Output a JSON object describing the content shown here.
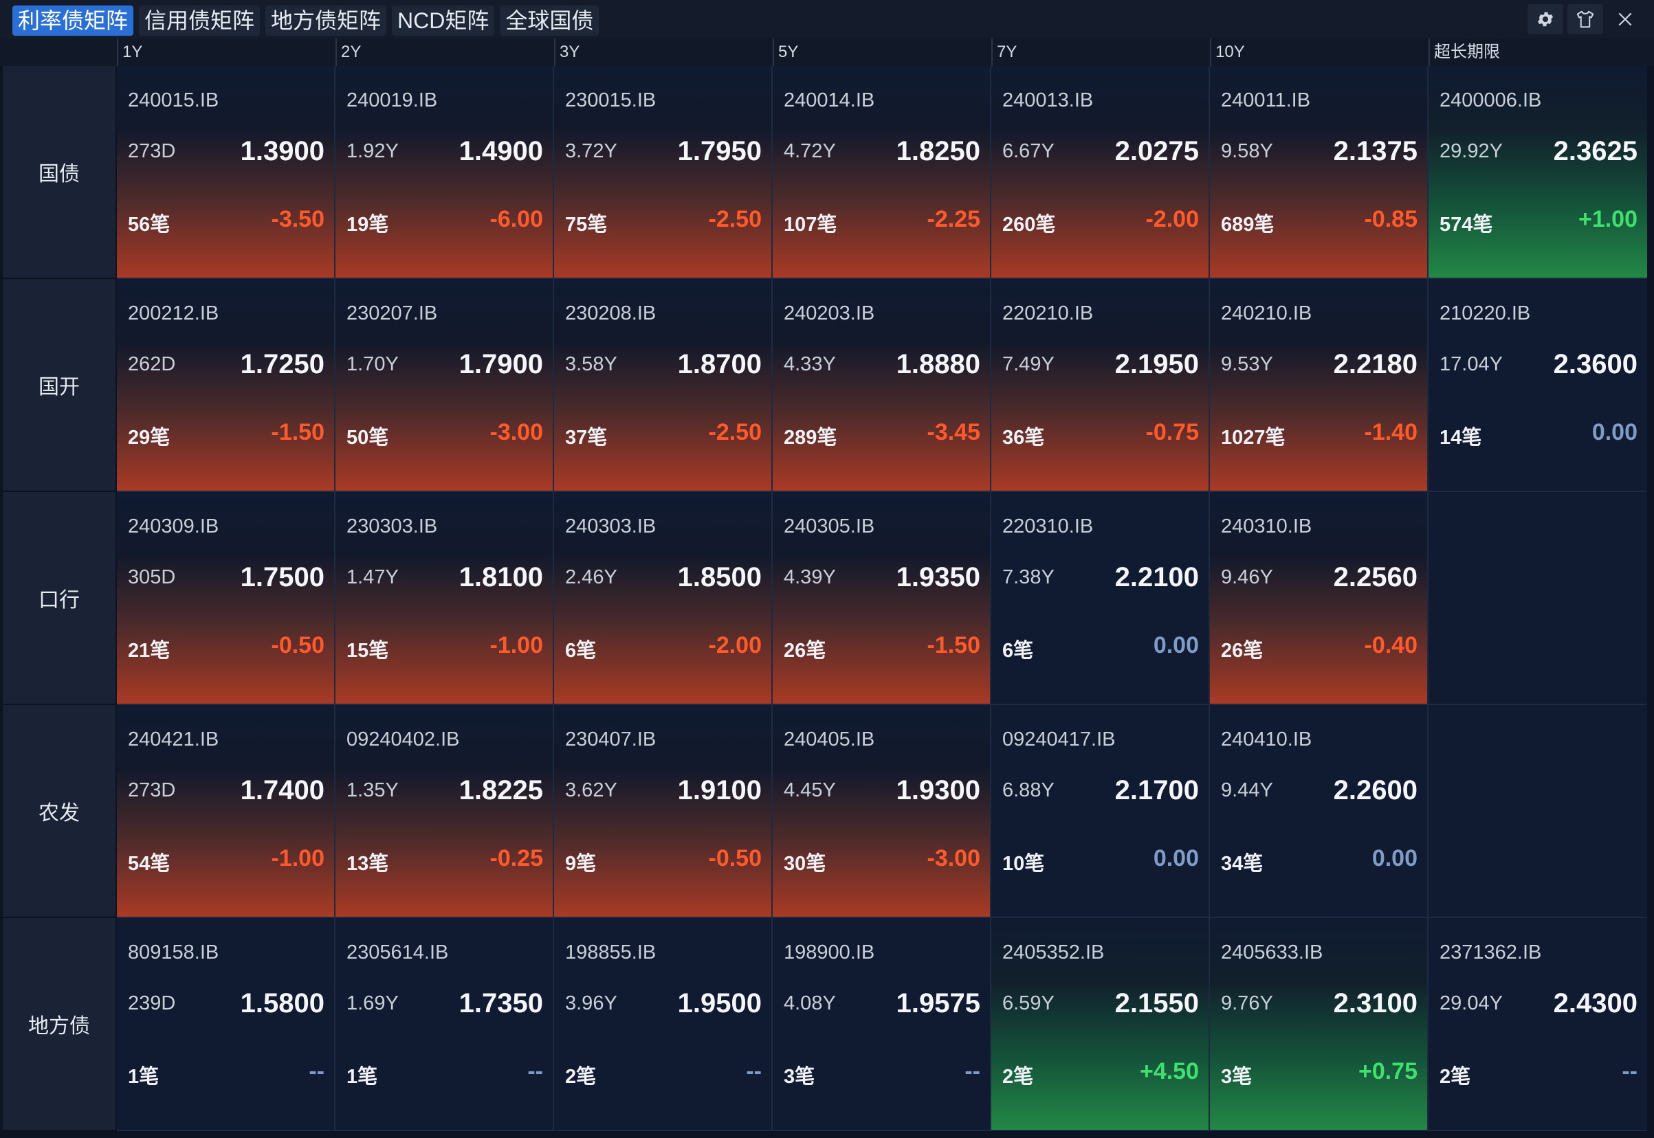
{
  "tabs": [
    "利率债矩阵",
    "信用债矩阵",
    "地方债矩阵",
    "NCD矩阵",
    "全球国债"
  ],
  "active_tab": 0,
  "window_icons": [
    "gear-icon",
    "shirt-icon",
    "close-icon"
  ],
  "close_glyph": "X",
  "columns": [
    "1Y",
    "2Y",
    "3Y",
    "5Y",
    "7Y",
    "10Y",
    "超长期限"
  ],
  "colors": {
    "down": "#ff5a2c",
    "up": "#3fe06e",
    "flat": "#7f9cc6",
    "active_tab": "#2a6fd6"
  },
  "rows": [
    {
      "label": "国债",
      "cells": [
        {
          "code": "240015.IB",
          "term": "273D",
          "yield": "1.3900",
          "count": "56笔",
          "change": "-3.50",
          "dir": "down"
        },
        {
          "code": "240019.IB",
          "term": "1.92Y",
          "yield": "1.4900",
          "count": "19笔",
          "change": "-6.00",
          "dir": "down"
        },
        {
          "code": "230015.IB",
          "term": "3.72Y",
          "yield": "1.7950",
          "count": "75笔",
          "change": "-2.50",
          "dir": "down"
        },
        {
          "code": "240014.IB",
          "term": "4.72Y",
          "yield": "1.8250",
          "count": "107笔",
          "change": "-2.25",
          "dir": "down"
        },
        {
          "code": "240013.IB",
          "term": "6.67Y",
          "yield": "2.0275",
          "count": "260笔",
          "change": "-2.00",
          "dir": "down"
        },
        {
          "code": "240011.IB",
          "term": "9.58Y",
          "yield": "2.1375",
          "count": "689笔",
          "change": "-0.85",
          "dir": "down"
        },
        {
          "code": "2400006.IB",
          "term": "29.92Y",
          "yield": "2.3625",
          "count": "574笔",
          "change": "+1.00",
          "dir": "up"
        }
      ]
    },
    {
      "label": "国开",
      "cells": [
        {
          "code": "200212.IB",
          "term": "262D",
          "yield": "1.7250",
          "count": "29笔",
          "change": "-1.50",
          "dir": "down"
        },
        {
          "code": "230207.IB",
          "term": "1.70Y",
          "yield": "1.7900",
          "count": "50笔",
          "change": "-3.00",
          "dir": "down"
        },
        {
          "code": "230208.IB",
          "term": "3.58Y",
          "yield": "1.8700",
          "count": "37笔",
          "change": "-2.50",
          "dir": "down"
        },
        {
          "code": "240203.IB",
          "term": "4.33Y",
          "yield": "1.8880",
          "count": "289笔",
          "change": "-3.45",
          "dir": "down"
        },
        {
          "code": "220210.IB",
          "term": "7.49Y",
          "yield": "2.1950",
          "count": "36笔",
          "change": "-0.75",
          "dir": "down"
        },
        {
          "code": "240210.IB",
          "term": "9.53Y",
          "yield": "2.2180",
          "count": "1027笔",
          "change": "-1.40",
          "dir": "down"
        },
        {
          "code": "210220.IB",
          "term": "17.04Y",
          "yield": "2.3600",
          "count": "14笔",
          "change": "0.00",
          "dir": "zero"
        }
      ]
    },
    {
      "label": "口行",
      "cells": [
        {
          "code": "240309.IB",
          "term": "305D",
          "yield": "1.7500",
          "count": "21笔",
          "change": "-0.50",
          "dir": "down"
        },
        {
          "code": "230303.IB",
          "term": "1.47Y",
          "yield": "1.8100",
          "count": "15笔",
          "change": "-1.00",
          "dir": "down"
        },
        {
          "code": "240303.IB",
          "term": "2.46Y",
          "yield": "1.8500",
          "count": "6笔",
          "change": "-2.00",
          "dir": "down"
        },
        {
          "code": "240305.IB",
          "term": "4.39Y",
          "yield": "1.9350",
          "count": "26笔",
          "change": "-1.50",
          "dir": "down"
        },
        {
          "code": "220310.IB",
          "term": "7.38Y",
          "yield": "2.2100",
          "count": "6笔",
          "change": "0.00",
          "dir": "zero"
        },
        {
          "code": "240310.IB",
          "term": "9.46Y",
          "yield": "2.2560",
          "count": "26笔",
          "change": "-0.40",
          "dir": "down"
        },
        null
      ]
    },
    {
      "label": "农发",
      "cells": [
        {
          "code": "240421.IB",
          "term": "273D",
          "yield": "1.7400",
          "count": "54笔",
          "change": "-1.00",
          "dir": "down"
        },
        {
          "code": "09240402.IB",
          "term": "1.35Y",
          "yield": "1.8225",
          "count": "13笔",
          "change": "-0.25",
          "dir": "down"
        },
        {
          "code": "230407.IB",
          "term": "3.62Y",
          "yield": "1.9100",
          "count": "9笔",
          "change": "-0.50",
          "dir": "down"
        },
        {
          "code": "240405.IB",
          "term": "4.45Y",
          "yield": "1.9300",
          "count": "30笔",
          "change": "-3.00",
          "dir": "down"
        },
        {
          "code": "09240417.IB",
          "term": "6.88Y",
          "yield": "2.1700",
          "count": "10笔",
          "change": "0.00",
          "dir": "zero"
        },
        {
          "code": "240410.IB",
          "term": "9.44Y",
          "yield": "2.2600",
          "count": "34笔",
          "change": "0.00",
          "dir": "zero"
        },
        null
      ]
    },
    {
      "label": "地方债",
      "cells": [
        {
          "code": "809158.IB",
          "term": "239D",
          "yield": "1.5800",
          "count": "1笔",
          "change": "--",
          "dir": "dash"
        },
        {
          "code": "2305614.IB",
          "term": "1.69Y",
          "yield": "1.7350",
          "count": "1笔",
          "change": "--",
          "dir": "dash"
        },
        {
          "code": "198855.IB",
          "term": "3.96Y",
          "yield": "1.9500",
          "count": "2笔",
          "change": "--",
          "dir": "dash"
        },
        {
          "code": "198900.IB",
          "term": "4.08Y",
          "yield": "1.9575",
          "count": "3笔",
          "change": "--",
          "dir": "dash"
        },
        {
          "code": "2405352.IB",
          "term": "6.59Y",
          "yield": "2.1550",
          "count": "2笔",
          "change": "+4.50",
          "dir": "up"
        },
        {
          "code": "2405633.IB",
          "term": "9.76Y",
          "yield": "2.3100",
          "count": "3笔",
          "change": "+0.75",
          "dir": "up"
        },
        {
          "code": "2371362.IB",
          "term": "29.04Y",
          "yield": "2.4300",
          "count": "2笔",
          "change": "--",
          "dir": "dash"
        }
      ]
    }
  ]
}
